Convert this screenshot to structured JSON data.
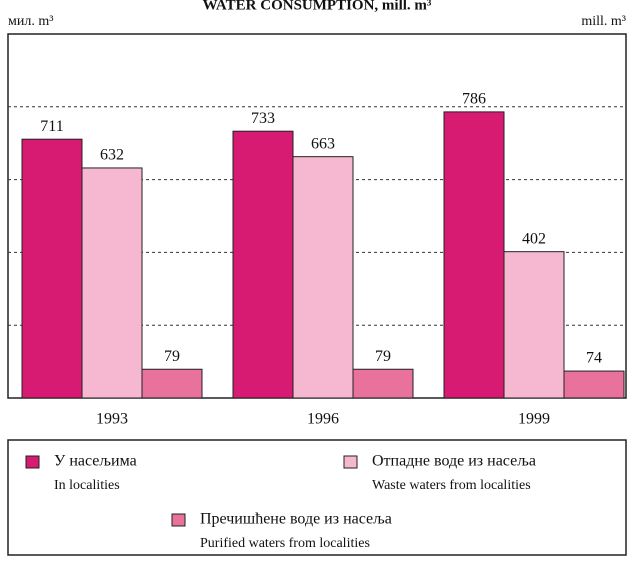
{
  "chart_data": {
    "type": "bar",
    "title": "WATER CONSUMPTION, mill. m³",
    "y_label_left": "мил. m³",
    "y_label_right": "mill. m³",
    "categories": [
      "1993",
      "1996",
      "1999"
    ],
    "series": [
      {
        "name": "У насељима",
        "name_en": "In localities",
        "color": "#d81b72",
        "values": [
          711,
          733,
          786
        ]
      },
      {
        "name": "Отпадне воде из насеља",
        "name_en": "Waste waters from localities",
        "color": "#f5b8d0",
        "values": [
          632,
          663,
          402
        ]
      },
      {
        "name": "Пречишћене воде из насеља",
        "name_en": "Purified waters from localities",
        "color": "#e8729c",
        "values": [
          79,
          79,
          74
        ]
      }
    ],
    "ylim": [
      0,
      1000
    ],
    "yticks": [
      200,
      400,
      600,
      800
    ],
    "grid": true
  }
}
